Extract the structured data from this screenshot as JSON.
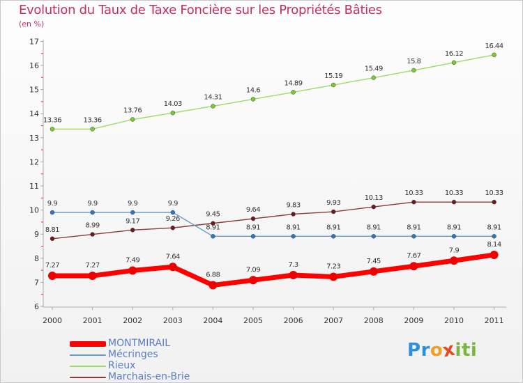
{
  "header": {
    "title": "Evolution du Taux de Taxe Foncière sur les Propriétés Bâties",
    "subtitle": "(en %)"
  },
  "logo": {
    "letters": [
      "P",
      "r",
      "o",
      "x",
      "i",
      "t",
      "i"
    ],
    "colors": [
      "#2f8fd8",
      "#2f8fd8",
      "#f0a020",
      "#e84820",
      "#7ab640",
      "#7ab640",
      "#7ab640"
    ]
  },
  "chart_data": {
    "type": "line",
    "title": "Evolution du Taux de Taxe Foncière sur les Propriétés Bâties",
    "ylabel": "(en %)",
    "xlabel": "",
    "ylim": [
      6,
      17
    ],
    "yticks": [
      6,
      7,
      8,
      9,
      10,
      11,
      12,
      13,
      14,
      15,
      16,
      17
    ],
    "categories": [
      "2000",
      "2001",
      "2002",
      "2003",
      "2004",
      "2005",
      "2006",
      "2007",
      "2008",
      "2009",
      "2010",
      "2011"
    ],
    "series": [
      {
        "name": "Rieux",
        "color": "#99dd66",
        "point_color": "#77cc33",
        "values": [
          13.36,
          13.36,
          13.76,
          14.03,
          14.31,
          14.6,
          14.89,
          15.19,
          15.49,
          15.8,
          16.12,
          16.44
        ],
        "labels": [
          "13.36",
          "13.36",
          "13.76",
          "14.03",
          "14.31",
          "14.6",
          "14.89",
          "15.19",
          "15.49",
          "15.8",
          "16.12",
          "16.44"
        ]
      },
      {
        "name": "Marchais-en-Brie",
        "color": "#8a3a3a",
        "point_color": "#6a1a1a",
        "values": [
          8.81,
          8.99,
          9.17,
          9.26,
          9.45,
          9.64,
          9.83,
          9.93,
          10.13,
          10.33,
          10.33,
          10.33
        ],
        "labels": [
          "8.81",
          "8.99",
          "9.17",
          "9.26",
          "9.45",
          "9.64",
          "9.83",
          "9.93",
          "10.13",
          "10.33",
          "10.33",
          "10.33"
        ]
      },
      {
        "name": "Mécringes",
        "color": "#6699cc",
        "point_color": "#3377bb",
        "values": [
          9.9,
          9.9,
          9.9,
          9.9,
          8.91,
          8.91,
          8.91,
          8.91,
          8.91,
          8.91,
          8.91,
          8.91
        ],
        "labels": [
          "9.9",
          "9.9",
          "9.9",
          "9.9",
          "8.91",
          "8.91",
          "8.91",
          "8.91",
          "8.91",
          "8.91",
          "8.91",
          "8.91"
        ]
      },
      {
        "name": "MONTMIRAIL",
        "color": "#ff0000",
        "point_color": "#ee0000",
        "values": [
          7.27,
          7.27,
          7.49,
          7.64,
          6.88,
          7.09,
          7.3,
          7.23,
          7.45,
          7.67,
          7.9,
          8.14
        ],
        "labels": [
          "7.27",
          "7.27",
          "7.49",
          "7.64",
          "6.88",
          "7.09",
          "7.3",
          "7.23",
          "7.45",
          "7.67",
          "7.9",
          "8.14"
        ]
      }
    ],
    "legend": [
      {
        "name": "MONTMIRAIL",
        "color": "#ff0000"
      },
      {
        "name": "Mécringes",
        "color": "#6699cc"
      },
      {
        "name": "Rieux",
        "color": "#99dd66"
      },
      {
        "name": "Marchais-en-Brie",
        "color": "#8a3a3a"
      }
    ],
    "legend_position": "bottom-left",
    "grid": false
  }
}
